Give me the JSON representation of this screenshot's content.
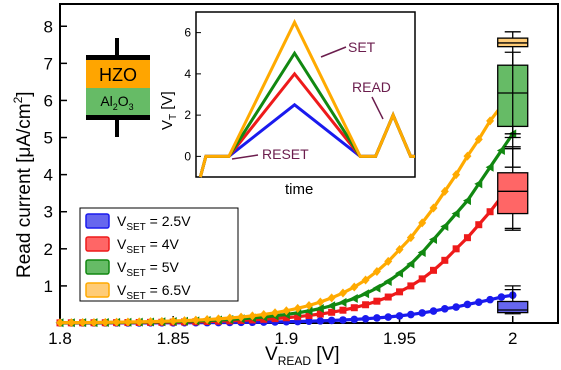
{
  "colors": {
    "blue": "#1a1aee",
    "red": "#ee1a1a",
    "green": "#118811",
    "orange": "#ffaa00",
    "blue_fill": "#6666ee",
    "red_fill": "#ff6666",
    "green_fill": "#66bb66",
    "orange_fill": "#ffcc77",
    "annotation": "#6b1d4d",
    "hzo_layer": "#ffa500",
    "al2o3_layer": "#66bb66"
  },
  "chart_data": {
    "type": "line",
    "xlabel_main": "V",
    "xlabel_sub": "READ",
    "xlabel_unit": " [V]",
    "ylabel_main": "Read current [μA/cm",
    "ylabel_sup": "2",
    "ylabel_close": "]",
    "xlim": [
      1.8,
      2.02
    ],
    "ylim": [
      0,
      8.6
    ],
    "x_ticks": [
      1.8,
      1.85,
      1.9,
      1.95,
      2.0
    ],
    "x_tick_labels": [
      "1.8",
      "1.85",
      "1.9",
      "1.95",
      "2"
    ],
    "y_ticks": [
      1,
      2,
      3,
      4,
      5,
      6,
      7,
      8
    ],
    "y_tick_labels": [
      "1",
      "2",
      "3",
      "4",
      "5",
      "6",
      "7",
      "8"
    ],
    "legend_placement": "bottom-left",
    "series": [
      {
        "name_prefix": "V",
        "name_sub": "SET",
        "name_suffix": " = 2.5V",
        "color_key": "blue",
        "fill_key": "blue_fill",
        "marker": "circle",
        "x": [
          1.8,
          1.805,
          1.81,
          1.815,
          1.82,
          1.825,
          1.83,
          1.835,
          1.84,
          1.845,
          1.85,
          1.855,
          1.86,
          1.865,
          1.87,
          1.875,
          1.88,
          1.885,
          1.89,
          1.895,
          1.9,
          1.905,
          1.91,
          1.915,
          1.92,
          1.925,
          1.93,
          1.935,
          1.94,
          1.945,
          1.95,
          1.955,
          1.96,
          1.965,
          1.97,
          1.975,
          1.98,
          1.985,
          1.99,
          1.995,
          2.0
        ],
        "y": [
          0.001,
          0.001,
          0.001,
          0.001,
          0.002,
          0.002,
          0.003,
          0.003,
          0.004,
          0.005,
          0.006,
          0.007,
          0.008,
          0.01,
          0.012,
          0.014,
          0.017,
          0.02,
          0.024,
          0.028,
          0.034,
          0.04,
          0.048,
          0.057,
          0.068,
          0.081,
          0.096,
          0.114,
          0.136,
          0.161,
          0.192,
          0.228,
          0.271,
          0.322,
          0.383,
          0.43,
          0.5,
          0.56,
          0.63,
          0.7,
          0.75
        ]
      },
      {
        "name_prefix": "V",
        "name_sub": "SET",
        "name_suffix": " = 4V",
        "color_key": "red",
        "fill_key": "red_fill",
        "marker": "square",
        "x": [
          1.8,
          1.805,
          1.81,
          1.815,
          1.82,
          1.825,
          1.83,
          1.835,
          1.84,
          1.845,
          1.85,
          1.855,
          1.86,
          1.865,
          1.87,
          1.875,
          1.88,
          1.885,
          1.89,
          1.895,
          1.9,
          1.905,
          1.91,
          1.915,
          1.92,
          1.925,
          1.93,
          1.935,
          1.94,
          1.945,
          1.95,
          1.955,
          1.96,
          1.965,
          1.97,
          1.975,
          1.98,
          1.985,
          1.99,
          1.995,
          2.0
        ],
        "y": [
          0.004,
          0.005,
          0.006,
          0.007,
          0.008,
          0.01,
          0.012,
          0.014,
          0.017,
          0.02,
          0.024,
          0.029,
          0.034,
          0.041,
          0.049,
          0.058,
          0.07,
          0.083,
          0.1,
          0.119,
          0.142,
          0.17,
          0.203,
          0.242,
          0.289,
          0.345,
          0.412,
          0.492,
          0.588,
          0.7,
          0.84,
          1.0,
          1.19,
          1.42,
          1.69,
          2.0,
          2.3,
          2.65,
          3.0,
          3.4,
          3.75
        ]
      },
      {
        "name_prefix": "V",
        "name_sub": "SET",
        "name_suffix": " = 5V",
        "color_key": "green",
        "fill_key": "green_fill",
        "marker": "triangle-left",
        "x": [
          1.8,
          1.805,
          1.81,
          1.815,
          1.82,
          1.825,
          1.83,
          1.835,
          1.84,
          1.845,
          1.85,
          1.855,
          1.86,
          1.865,
          1.87,
          1.875,
          1.88,
          1.885,
          1.89,
          1.895,
          1.9,
          1.905,
          1.91,
          1.915,
          1.92,
          1.925,
          1.93,
          1.935,
          1.94,
          1.945,
          1.95,
          1.955,
          1.96,
          1.965,
          1.97,
          1.975,
          1.98,
          1.985,
          1.99,
          1.995,
          2.0
        ],
        "y": [
          0.006,
          0.007,
          0.009,
          0.011,
          0.013,
          0.016,
          0.019,
          0.023,
          0.027,
          0.033,
          0.039,
          0.047,
          0.056,
          0.067,
          0.08,
          0.095,
          0.114,
          0.136,
          0.162,
          0.193,
          0.23,
          0.274,
          0.327,
          0.39,
          0.465,
          0.555,
          0.662,
          0.79,
          0.94,
          1.12,
          1.34,
          1.59,
          1.9,
          2.25,
          2.6,
          2.95,
          3.3,
          3.75,
          4.2,
          4.65,
          5.1
        ]
      },
      {
        "name_prefix": "V",
        "name_sub": "SET",
        "name_suffix": " = 6.5V",
        "color_key": "orange",
        "fill_key": "orange_fill",
        "marker": "diamond",
        "x": [
          1.8,
          1.805,
          1.81,
          1.815,
          1.82,
          1.825,
          1.83,
          1.835,
          1.84,
          1.845,
          1.85,
          1.855,
          1.86,
          1.865,
          1.87,
          1.875,
          1.88,
          1.885,
          1.89,
          1.895,
          1.9,
          1.905,
          1.91,
          1.915,
          1.92,
          1.925,
          1.93,
          1.935,
          1.94,
          1.945,
          1.95,
          1.955,
          1.96,
          1.965,
          1.97,
          1.975,
          1.98,
          1.985,
          1.99,
          1.995,
          2.0
        ],
        "y": [
          0.008,
          0.01,
          0.012,
          0.015,
          0.018,
          0.022,
          0.026,
          0.031,
          0.037,
          0.045,
          0.054,
          0.065,
          0.078,
          0.093,
          0.112,
          0.134,
          0.16,
          0.192,
          0.23,
          0.275,
          0.33,
          0.395,
          0.472,
          0.565,
          0.676,
          0.81,
          0.97,
          1.16,
          1.39,
          1.66,
          1.98,
          2.3,
          2.7,
          3.1,
          3.55,
          4.0,
          4.5,
          4.95,
          5.45,
          5.85,
          6.0
        ]
      }
    ],
    "boxplots": [
      {
        "color_key": "blue",
        "fill_key": "blue_fill",
        "whisker_low": 0.25,
        "q1": 0.28,
        "median": 0.35,
        "q3": 0.58,
        "whisker_high": 1.0,
        "outliers": [
          0.9
        ]
      },
      {
        "color_key": "red",
        "fill_key": "red_fill",
        "whisker_low": 2.5,
        "q1": 2.95,
        "median": 3.55,
        "q3": 4.05,
        "whisker_high": 4.7,
        "outliers": [
          2.55,
          4.75
        ]
      },
      {
        "color_key": "green",
        "fill_key": "green_fill",
        "whisker_low": 4.2,
        "q1": 5.3,
        "median": 6.2,
        "q3": 6.95,
        "whisker_high": 7.3,
        "outliers": []
      },
      {
        "color_key": "orange",
        "fill_key": "orange_fill",
        "whisker_low": 5.1,
        "q1": 7.45,
        "median": 7.55,
        "q3": 7.68,
        "whisker_high": 7.85,
        "outliers": [
          5.0
        ]
      }
    ],
    "inset": {
      "xlabel": "time",
      "ylabel_main": "V",
      "ylabel_sub": "T",
      "ylabel_unit": " [V]",
      "ylim": [
        -1,
        7
      ],
      "y_ticks": [
        0,
        2,
        4,
        6
      ],
      "y_tick_labels": [
        "0",
        "2",
        "4",
        "6"
      ],
      "pulses": [
        {
          "color_key": "blue",
          "peak": 2.5
        },
        {
          "color_key": "red",
          "peak": 4.0
        },
        {
          "color_key": "green",
          "peak": 5.0
        },
        {
          "color_key": "orange",
          "peak": 6.5
        }
      ],
      "read_peak": 2.0,
      "reset_low": -1.0,
      "labels": {
        "set": "SET",
        "read": "READ",
        "reset": "RESET"
      }
    }
  },
  "device": {
    "top_layer": "HZO",
    "bottom_prefix": "Al",
    "bottom_sub1": "2",
    "bottom_mid": "O",
    "bottom_sub2": "3"
  }
}
